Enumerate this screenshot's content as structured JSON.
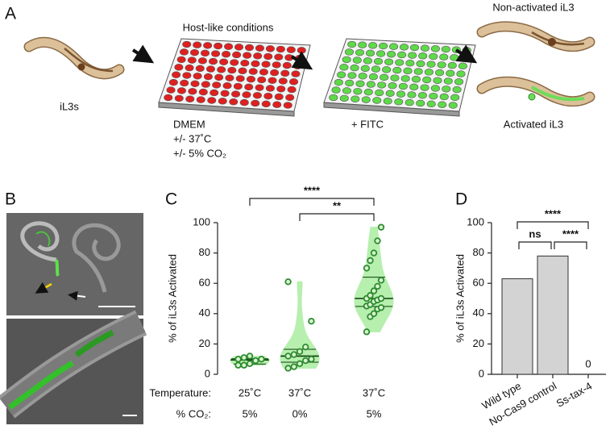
{
  "panel_a": {
    "letter": "A",
    "worm_label": "iL3s",
    "plate_title": "Host-like conditions",
    "conditions": [
      "DMEM",
      "+/-  37˚C",
      "+/-  5% CO₂"
    ],
    "stain": "+ FITC",
    "non_activated": "Non-activated iL3",
    "activated": "Activated iL3"
  },
  "panel_b": {
    "letter": "B"
  },
  "chart_data": [
    {
      "type": "violin",
      "letter": "C",
      "y_label": "% of iL3s Activated",
      "values": [
        [
          6,
          6,
          7,
          9,
          10,
          10,
          11,
          12
        ],
        [
          4,
          5,
          7,
          9,
          10,
          12,
          13,
          15,
          18,
          35,
          61
        ],
        [
          28,
          38,
          40,
          43,
          44,
          45,
          46,
          48,
          49,
          50,
          50,
          52,
          55,
          58,
          62,
          70,
          75,
          80,
          88,
          97
        ]
      ],
      "color": "#2e8b2e",
      "fill": "#b6efae",
      "ylim": [
        0,
        100
      ],
      "yticks": [
        0,
        20,
        40,
        60,
        80,
        100
      ],
      "rows": [
        {
          "label": "Temperature:",
          "values": [
            "25˚C",
            "37˚C",
            "37˚C"
          ]
        },
        {
          "label": "% CO₂:",
          "values": [
            "5%",
            "0%",
            "5%"
          ]
        }
      ],
      "comparisons": [
        {
          "groups": [
            0,
            2
          ],
          "label": "****"
        },
        {
          "groups": [
            1,
            2
          ],
          "label": "**"
        }
      ]
    },
    {
      "type": "bar",
      "letter": "D",
      "y_label": "% of iL3s Activated",
      "categories": [
        "Wild type",
        "No-Cas9 control",
        "Ss-tax-4"
      ],
      "values": [
        63,
        78,
        0
      ],
      "value_labels": [
        null,
        null,
        "0"
      ],
      "color": "#d3d3d3",
      "ylim": [
        0,
        100
      ],
      "yticks": [
        0,
        20,
        40,
        60,
        80,
        100
      ],
      "comparisons": [
        {
          "groups": [
            0,
            2
          ],
          "label": "****"
        },
        {
          "groups": [
            0,
            1
          ],
          "label": "ns"
        },
        {
          "groups": [
            1,
            2
          ],
          "label": "****"
        }
      ]
    }
  ]
}
